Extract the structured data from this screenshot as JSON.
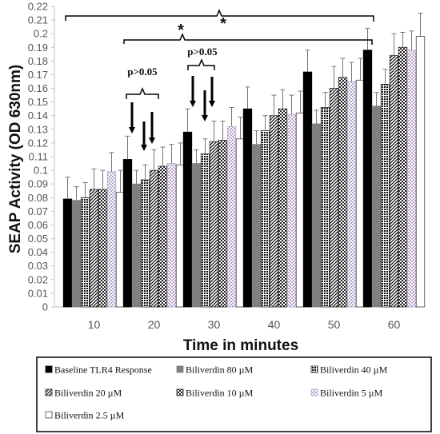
{
  "chart_data": {
    "type": "bar",
    "xlabel": "Time in minutes",
    "ylabel": "SEAP Activity (OD 630nm)",
    "ylim": [
      0,
      0.22
    ],
    "ytick_step": 0.01,
    "categories": [
      "10",
      "20",
      "30",
      "40",
      "50",
      "60"
    ],
    "series": [
      {
        "name": "Baseline TLR4 Response",
        "values": [
          0.079,
          0.108,
          0.128,
          0.145,
          0.172,
          0.188
        ],
        "errors": [
          0.016,
          0.017,
          0.017,
          0.016,
          0.016,
          0.016
        ],
        "fill": "solid-black"
      },
      {
        "name": "Biliverdin 80 µM",
        "values": [
          0.078,
          0.09,
          0.105,
          0.119,
          0.134,
          0.147
        ],
        "errors": [
          0.01,
          0.01,
          0.01,
          0.01,
          0.01,
          0.01
        ],
        "fill": "solid-gray"
      },
      {
        "name": "Biliverdin 40 µM",
        "values": [
          0.08,
          0.093,
          0.112,
          0.129,
          0.146,
          0.163
        ],
        "errors": [
          0.011,
          0.011,
          0.011,
          0.011,
          0.011,
          0.011
        ],
        "fill": "dots-dark"
      },
      {
        "name": "Biliverdin 20 µM",
        "values": [
          0.086,
          0.1,
          0.121,
          0.14,
          0.16,
          0.184
        ],
        "errors": [
          0.015,
          0.015,
          0.015,
          0.015,
          0.016,
          0.016
        ],
        "fill": "diagonal"
      },
      {
        "name": "Biliverdin 10 µM",
        "values": [
          0.086,
          0.103,
          0.122,
          0.145,
          0.168,
          0.19
        ],
        "errors": [
          0.014,
          0.014,
          0.014,
          0.014,
          0.014,
          0.011
        ],
        "fill": "checker"
      },
      {
        "name": "Biliverdin 5 µM",
        "values": [
          0.099,
          0.105,
          0.132,
          0.141,
          0.165,
          0.188
        ],
        "errors": [
          0.014,
          0.014,
          0.014,
          0.014,
          0.014,
          0.014
        ],
        "fill": "lilac-checker"
      },
      {
        "name": "Biliverdin 2.5 µM",
        "values": [
          0.084,
          0.104,
          0.123,
          0.142,
          0.166,
          0.198
        ],
        "errors": [
          0.016,
          0.016,
          0.016,
          0.016,
          0.016,
          0.017
        ],
        "fill": "white"
      }
    ],
    "annotations": {
      "p20": "p>0.05",
      "p30": "p>0.05",
      "star_20_60": "*",
      "star_10_60": "*"
    },
    "legend_position": "bottom",
    "colors": {
      "solid_black": "#000000",
      "solid_gray": "#808080",
      "lilac": "#b9a6cf",
      "axis": "#bfbfbf"
    }
  }
}
